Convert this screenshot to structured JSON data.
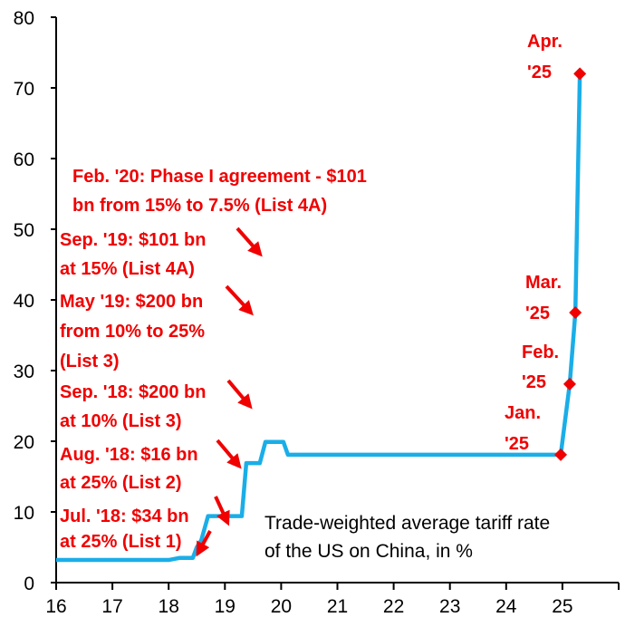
{
  "chart_data": {
    "type": "line",
    "title": "",
    "xlabel": "",
    "ylabel": "",
    "xlim": [
      16,
      26
    ],
    "ylim": [
      0,
      80
    ],
    "x_ticks": [
      "16",
      "17",
      "18",
      "19",
      "20",
      "21",
      "22",
      "23",
      "24",
      "25"
    ],
    "y_ticks": [
      "0",
      "10",
      "20",
      "30",
      "40",
      "50",
      "60",
      "70",
      "80"
    ],
    "grid": false,
    "series": [
      {
        "color": "#1aaee8",
        "x": [
          16.0,
          18.0,
          18.2,
          18.43,
          18.5,
          18.58,
          18.7,
          19.3,
          19.38,
          19.62,
          19.72,
          20.04,
          20.12,
          24.97,
          25.13,
          25.23,
          25.31
        ],
        "y": [
          3.2,
          3.2,
          3.5,
          3.5,
          5.0,
          6.0,
          9.4,
          9.4,
          16.9,
          16.9,
          19.9,
          19.9,
          18.1,
          18.1,
          28.1,
          38.2,
          72.0
        ]
      }
    ],
    "markers": [
      {
        "x": 24.97,
        "y": 18.1,
        "label_line1": "Jan.",
        "label_line2": "'25"
      },
      {
        "x": 25.13,
        "y": 28.1,
        "label_line1": "Feb.",
        "label_line2": "'25"
      },
      {
        "x": 25.23,
        "y": 38.2,
        "label_line1": "Mar.",
        "label_line2": "'25"
      },
      {
        "x": 25.31,
        "y": 72.0,
        "label_line1": "Apr.",
        "label_line2": "'25"
      }
    ],
    "annotations": [
      {
        "lines": [
          "Feb. '20: Phase I agreement - $101",
          "bn from 15% to 7.5% (List 4A)"
        ]
      },
      {
        "lines": [
          "Sep. '19: $101 bn",
          "at 15% (List 4A)"
        ]
      },
      {
        "lines": [
          "May '19: $200 bn",
          "from 10% to 25%",
          "(List 3)"
        ]
      },
      {
        "lines": [
          "Sep. '18: $200 bn",
          "at 10% (List 3)"
        ]
      },
      {
        "lines": [
          "Aug. '18: $16 bn",
          "at 25% (List 2)"
        ]
      },
      {
        "lines": [
          "Jul. '18: $34 bn",
          "at 25% (List 1)"
        ]
      }
    ],
    "note": [
      "Trade-weighted average tariff rate",
      "of the US on China, in %"
    ],
    "annotation_color": "#f00000"
  }
}
